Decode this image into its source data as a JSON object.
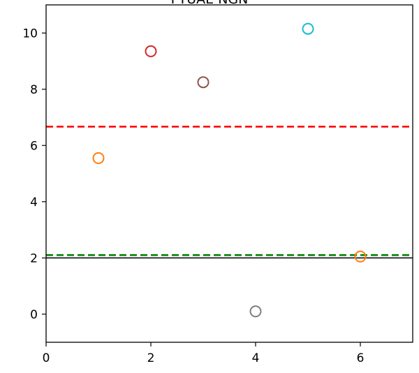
{
  "chart_data": {
    "type": "scatter",
    "title": "PYUAE NGN",
    "xlabel": "",
    "ylabel": "",
    "xlim": [
      0,
      7
    ],
    "ylim": [
      -1,
      11
    ],
    "x_ticks": [
      0,
      2,
      4,
      6
    ],
    "y_ticks": [
      0,
      2,
      4,
      6,
      8,
      10
    ],
    "x_tick_labels": [
      "0",
      "2",
      "4",
      "6"
    ],
    "y_tick_labels": [
      "0",
      "2",
      "4",
      "6",
      "8",
      "10"
    ],
    "grid": false,
    "points": [
      {
        "x": 1,
        "y": 5.55,
        "color": "#ff7f0e"
      },
      {
        "x": 2,
        "y": 9.35,
        "color": "#d62728"
      },
      {
        "x": 3,
        "y": 8.25,
        "color": "#8c564b"
      },
      {
        "x": 4,
        "y": 0.1,
        "color": "#7f7f7f"
      },
      {
        "x": 5,
        "y": 10.15,
        "color": "#17becf"
      },
      {
        "x": 6,
        "y": 2.05,
        "color": "#ff7f0e"
      }
    ],
    "reference_lines": [
      {
        "y": 6.67,
        "style": "dashed",
        "color": "#ff0000"
      },
      {
        "y": 2.1,
        "style": "dashed",
        "color": "#008000"
      },
      {
        "y": 2.0,
        "style": "solid",
        "color": "#000000"
      }
    ]
  }
}
